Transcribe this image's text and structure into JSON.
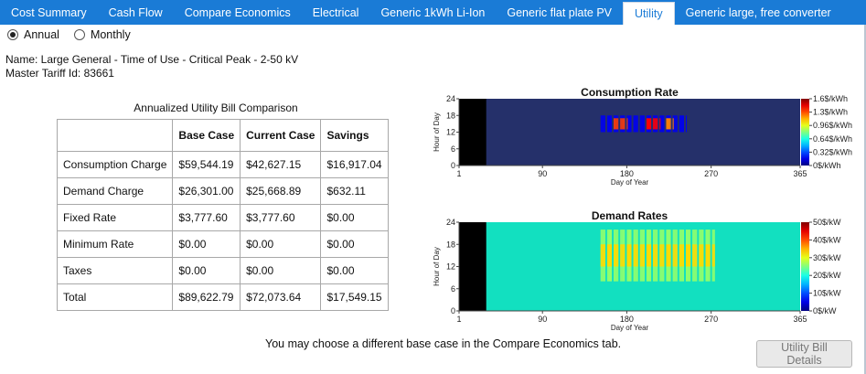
{
  "tabs": [
    {
      "label": "Cost Summary",
      "active": false
    },
    {
      "label": "Cash Flow",
      "active": false
    },
    {
      "label": "Compare Economics",
      "active": false
    },
    {
      "label": "Electrical",
      "active": false
    },
    {
      "label": "Generic 1kWh Li-Ion",
      "active": false
    },
    {
      "label": "Generic flat plate PV",
      "active": false
    },
    {
      "label": "Utility",
      "active": true
    },
    {
      "label": "Generic large, free converter",
      "active": false
    }
  ],
  "period": {
    "options": [
      {
        "label": "Annual",
        "selected": true
      },
      {
        "label": "Monthly",
        "selected": false
      }
    ]
  },
  "tariff": {
    "name_line": "Name: Large General - Time of Use - Critical Peak - 2-50 kV",
    "id_line": "Master Tariff Id: 83661"
  },
  "bill_table": {
    "title": "Annualized Utility Bill Comparison",
    "headers": [
      "",
      "Base Case",
      "Current Case",
      "Savings"
    ],
    "rows": [
      [
        "Consumption Charge",
        "$59,544.19",
        "$42,627.15",
        "$16,917.04"
      ],
      [
        "Demand Charge",
        "$26,301.00",
        "$25,668.89",
        "$632.11"
      ],
      [
        "Fixed Rate",
        "$3,777.60",
        "$3,777.60",
        "$0.00"
      ],
      [
        "Minimum Rate",
        "$0.00",
        "$0.00",
        "$0.00"
      ],
      [
        "Taxes",
        "$0.00",
        "$0.00",
        "$0.00"
      ],
      [
        "Total",
        "$89,622.79",
        "$72,073.64",
        "$17,549.15"
      ]
    ]
  },
  "chart_data": [
    {
      "type": "heatmap",
      "title": "Consumption Rate",
      "xlabel": "Day of Year",
      "ylabel": "Hour of Day",
      "xlim": [
        1,
        365
      ],
      "ylim": [
        0,
        24
      ],
      "xticks": [
        "1",
        "90",
        "180",
        "270",
        "365"
      ],
      "yticks": [
        "0",
        "6",
        "12",
        "18",
        "24"
      ],
      "colorbar_ticks": [
        "1.6$/kWh",
        "1.3$/kWh",
        "0.96$/kWh",
        "0.64$/kWh",
        "0.32$/kWh",
        "0$/kWh"
      ],
      "colorbar_max": 1.6,
      "colors": {
        "background": "#25306a",
        "nodata": "#000000",
        "low": "#2a3fb8",
        "high": "#f07010"
      },
      "nodata_days": [
        1,
        30
      ],
      "background_value": 0.02,
      "bands": [
        {
          "day_from": 152,
          "day_to": 243,
          "hour_from": 12,
          "hour_to": 18,
          "value": 0.18,
          "weekdays_only": true
        },
        {
          "day_from": 166,
          "day_to": 180,
          "hour_from": 13,
          "hour_to": 17,
          "value": 1.3,
          "weekdays_only": true
        },
        {
          "day_from": 201,
          "day_to": 215,
          "hour_from": 13,
          "hour_to": 17,
          "value": 1.4,
          "weekdays_only": true
        },
        {
          "day_from": 222,
          "day_to": 229,
          "hour_from": 13,
          "hour_to": 17,
          "value": 1.2,
          "weekdays_only": true
        }
      ]
    },
    {
      "type": "heatmap",
      "title": "Demand Rates",
      "xlabel": "Day of Year",
      "ylabel": "Hour of Day",
      "xlim": [
        1,
        365
      ],
      "ylim": [
        0,
        24
      ],
      "xticks": [
        "1",
        "90",
        "180",
        "270",
        "365"
      ],
      "yticks": [
        "0",
        "6",
        "12",
        "18",
        "24"
      ],
      "colorbar_ticks": [
        "50$/kW",
        "40$/kW",
        "30$/kW",
        "20$/kW",
        "10$/kW",
        "0$/kW"
      ],
      "colorbar_max": 50,
      "colors": {
        "background": "#12e0c0",
        "nodata": "#000000"
      },
      "nodata_days": [
        1,
        30
      ],
      "background_value": 17,
      "bands": [
        {
          "day_from": 152,
          "day_to": 273,
          "hour_from": 8,
          "hour_to": 22,
          "value": 26,
          "weekdays_only": true
        },
        {
          "day_from": 152,
          "day_to": 273,
          "hour_from": 12,
          "hour_to": 18,
          "value": 33,
          "weekdays_only": true
        }
      ]
    }
  ],
  "footer_note": "You may choose a different base case in the Compare Economics tab.",
  "details_button": {
    "label": "Utility Bill Details",
    "enabled": false
  }
}
